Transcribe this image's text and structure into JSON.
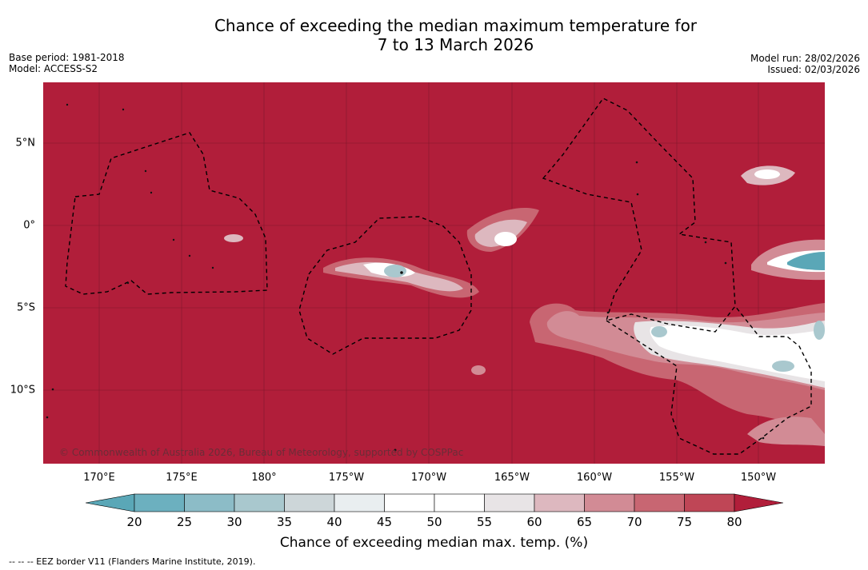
{
  "header": {
    "title_line1": "Chance of exceeding the median maximum temperature for",
    "title_line2": "7 to 13 March 2026",
    "base_period": "Base period: 1981-2018",
    "model": "Model: ACCESS-S2",
    "model_run": "Model run: 28/02/2026",
    "issued": "Issued: 02/03/2026"
  },
  "map": {
    "copyright": "© Commonwealth of Australia 2026, Bureau of Meteorology, supported by COSPPac",
    "lon_labels": [
      "170°E",
      "175°E",
      "180°",
      "175°W",
      "170°W",
      "165°W",
      "160°W",
      "155°W",
      "150°W"
    ],
    "lat_labels": [
      "5°N",
      "0°",
      "5°S",
      "10°S"
    ],
    "background_color": "#b11e3a",
    "border_style": "dashed"
  },
  "colorbar": {
    "ticks": [
      "20",
      "25",
      "30",
      "35",
      "40",
      "45",
      "50",
      "55",
      "60",
      "65",
      "70",
      "75",
      "80"
    ],
    "colors": [
      "#5aa7b7",
      "#6cb0bf",
      "#8cbcc7",
      "#a9c8ce",
      "#cdd6d9",
      "#e9eef0",
      "#ffffff",
      "#ffffff",
      "#e8e4e6",
      "#ddb8bf",
      "#d28b95",
      "#c86672",
      "#bf4656",
      "#b11e3a"
    ],
    "title": "Chance of exceeding median max. temp. (%)"
  },
  "footnote": "--  --  -- EEZ border V11 (Flanders Marine Institute, 2019)."
}
